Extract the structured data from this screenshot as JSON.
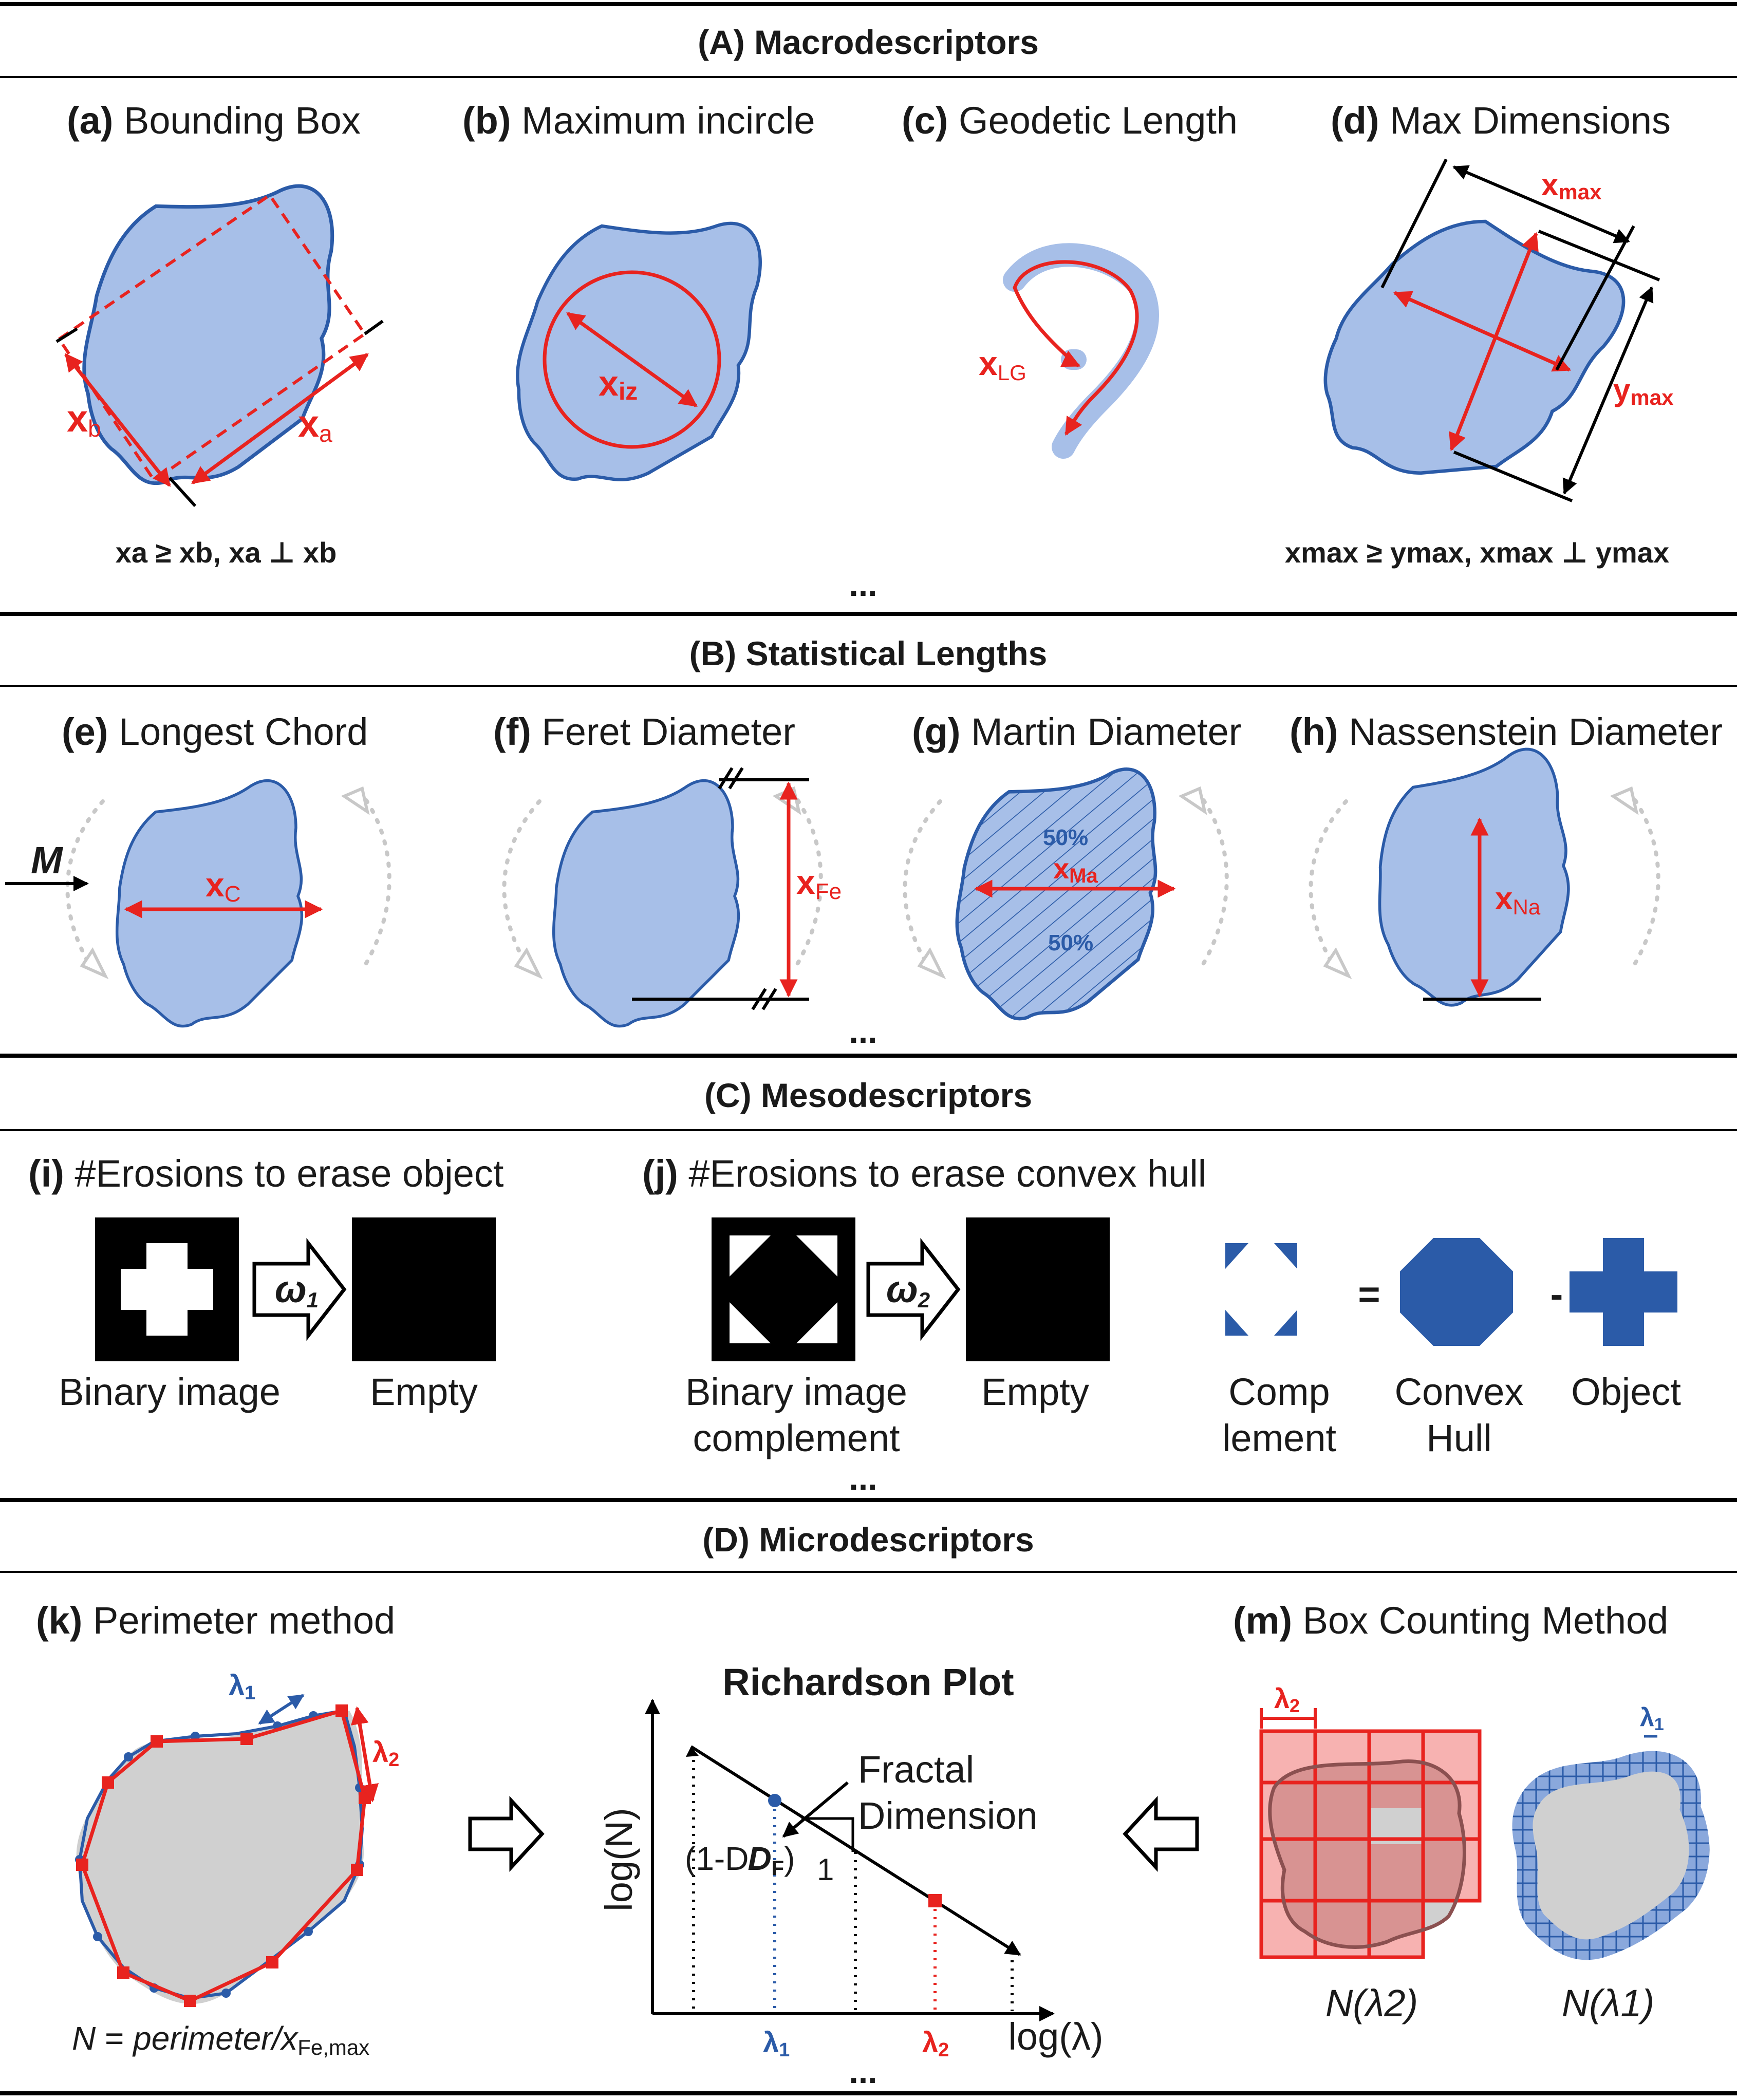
{
  "sections": {
    "A": "(A) Macrodescriptors",
    "B": "(B) Statistical Lengths",
    "C": "(C) Mesodescriptors",
    "D": "(D) Microdescriptors",
    "ellipsis": "..."
  },
  "panels": {
    "a": {
      "tag": "(a)",
      "title": "Bounding Box",
      "label_a": "x",
      "sub_a": "a",
      "label_b": "x",
      "sub_b": "b",
      "formula": "xa ≥ xb, xa ⊥ xb"
    },
    "b": {
      "tag": "(b)",
      "title": "Maximum incircle",
      "label": "x",
      "sub": "iz"
    },
    "c": {
      "tag": "(c)",
      "title": "Geodetic Length",
      "label": "x",
      "sub": "LG"
    },
    "d": {
      "tag": "(d)",
      "title": "Max Dimensions",
      "label_x": "x",
      "sub_x": "max",
      "label_y": "y",
      "sub_y": "max",
      "formula": "xmax ≥ ymax, xmax ⊥ ymax"
    },
    "e": {
      "tag": "(e)",
      "title": "Longest Chord",
      "label": "x",
      "sub": "C",
      "arrow_label": "M"
    },
    "f": {
      "tag": "(f)",
      "title": "Feret Diameter",
      "label": "x",
      "sub": "Fe"
    },
    "g": {
      "tag": "(g)",
      "title": "Martin Diameter",
      "label": "x",
      "sub": "Ma",
      "pct_top": "50%",
      "pct_bottom": "50%"
    },
    "h": {
      "tag": "(h)",
      "title": "Nassenstein Diameter",
      "label": "x",
      "sub": "Na"
    },
    "i": {
      "tag": "(i)",
      "title": "#Erosions to erase object",
      "omega": "ω",
      "omega_sub": "1",
      "cap_left": "Binary image",
      "cap_right": "Empty"
    },
    "j": {
      "tag": "(j)",
      "title": "#Erosions to erase convex hull",
      "omega": "ω",
      "omega_sub": "2",
      "cap_left_1": "Binary image",
      "cap_left_2": "complement",
      "cap_right": "Empty",
      "eq": "=",
      "minus": "-",
      "cap_comp_1": "Comp",
      "cap_comp_2": "lement",
      "cap_hull_1": "Convex",
      "cap_hull_2": "Hull",
      "cap_obj": "Object"
    },
    "k": {
      "tag": "(k)",
      "title": "Perimeter method",
      "lambda1": "λ",
      "lambda1_sub": "1",
      "lambda2": "λ",
      "lambda2_sub": "2",
      "formula_N": "N",
      "formula_eq": " = ",
      "formula_per": "perimeter/x",
      "formula_sub": "Fe,max"
    },
    "plot": {
      "title": "Richardson Plot",
      "ylabel": "log(N)",
      "xlabel": "log(λ)",
      "fractal_1": "Fractal",
      "fractal_2": "Dimension",
      "slope_label": "(1-D",
      "slope_sub": "F",
      "slope_close": ")",
      "run": "1",
      "tick1": "λ",
      "tick1_sub": "1",
      "tick2": "λ",
      "tick2_sub": "2"
    },
    "m": {
      "tag": "(m)",
      "title": "Box Counting Method",
      "lambda2": "λ",
      "lambda2_sub": "2",
      "lambda1": "λ",
      "lambda1_sub": "1",
      "cap_left": "N(λ2)",
      "cap_right": "N(λ1)"
    }
  },
  "colors": {
    "red": "#e8231f",
    "blue": "#2b5ba8",
    "light_blue": "#a7bfe8",
    "gray": "#d0d0d0"
  }
}
